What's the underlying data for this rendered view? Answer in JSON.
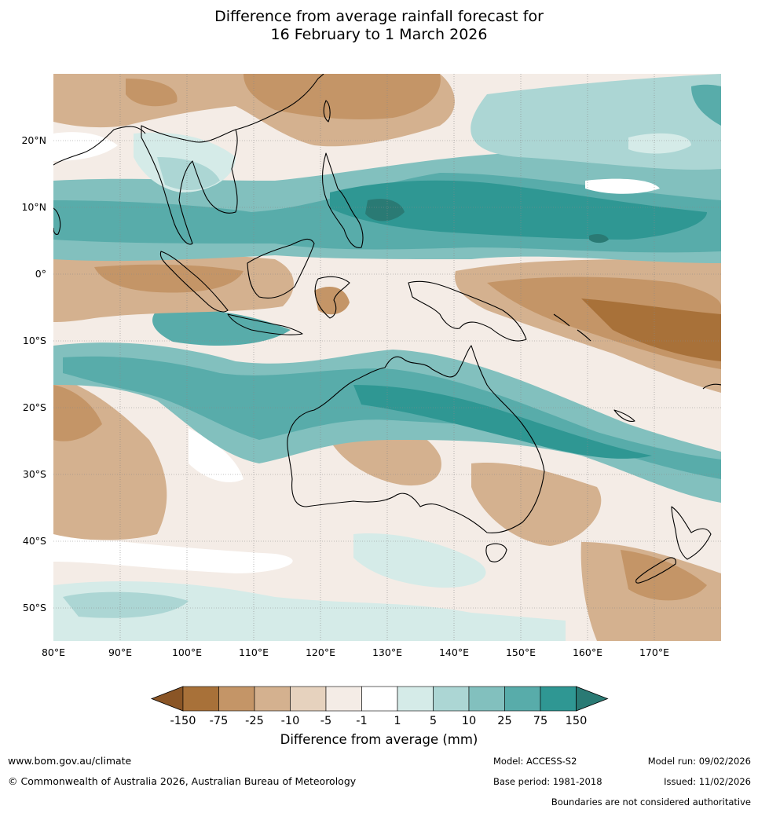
{
  "title": {
    "line1": "Difference from average rainfall forecast for",
    "line2": "16 February to 1 March 2026"
  },
  "map": {
    "lon_labels": [
      "80°E",
      "90°E",
      "100°E",
      "110°E",
      "120°E",
      "130°E",
      "140°E",
      "150°E",
      "160°E",
      "170°E"
    ],
    "lat_labels": [
      "20°N",
      "10°N",
      "0°",
      "10°S",
      "20°S",
      "30°S",
      "40°S",
      "50°S"
    ]
  },
  "colorbar": {
    "title": "Difference from average (mm)",
    "ticks": [
      "-150",
      "-75",
      "-25",
      "-10",
      "-5",
      "-1",
      "1",
      "5",
      "10",
      "25",
      "75",
      "150"
    ],
    "colors": [
      "#a87139",
      "#c49567",
      "#d4b18f",
      "#e6d2be",
      "#f4ece6",
      "#ffffff",
      "#d5ebe8",
      "#acd6d4",
      "#82c0be",
      "#58acaa",
      "#2f9793"
    ],
    "low_extend_color": "#8a5526",
    "high_extend_color": "#2a7a74"
  },
  "footer": {
    "website": "www.bom.gov.au/climate",
    "copyright": "© Commonwealth of Australia 2026, Australian Bureau of Meteorology",
    "model": "Model: ACCESS-S2",
    "base_period": "Base period: 1981-2018",
    "model_run": "Model run: 09/02/2026",
    "issued": "Issued: 11/02/2026",
    "disclaimer": "Boundaries are not considered authoritative"
  }
}
